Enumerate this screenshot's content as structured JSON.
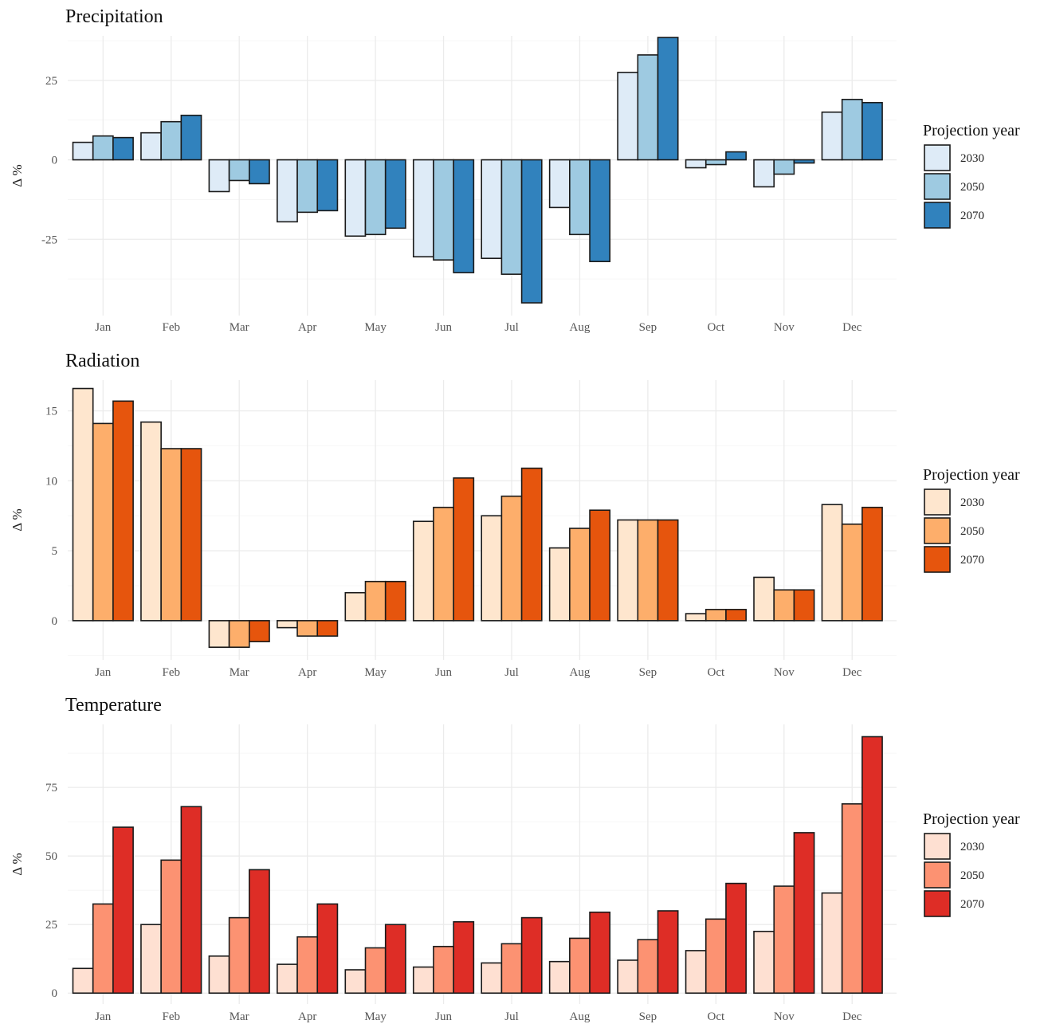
{
  "chart_data": [
    {
      "type": "bar",
      "title": "Precipitation",
      "ylabel": "Δ %",
      "xlabel": "",
      "categories": [
        "Jan",
        "Feb",
        "Mar",
        "Apr",
        "May",
        "Jun",
        "Jul",
        "Aug",
        "Sep",
        "Oct",
        "Nov",
        "Dec"
      ],
      "ylim": [
        -49,
        39
      ],
      "yticks": [
        -25,
        0,
        25
      ],
      "grid": true,
      "legend": {
        "title": "Projection year",
        "position": "right"
      },
      "series": [
        {
          "name": "2030",
          "color": "#deebf7",
          "values": [
            5.5,
            8.5,
            -10,
            -19.5,
            -24,
            -30.5,
            -31,
            -15,
            27.5,
            -2.5,
            -8.5,
            15
          ]
        },
        {
          "name": "2050",
          "color": "#9ecae1",
          "values": [
            7.5,
            12,
            -6.5,
            -16.5,
            -23.5,
            -31.5,
            -36,
            -23.5,
            33,
            -1.5,
            -4.5,
            19
          ]
        },
        {
          "name": "2070",
          "color": "#3182bd",
          "values": [
            7,
            14,
            -7.5,
            -16,
            -21.5,
            -35.5,
            -45,
            -32,
            38.5,
            2.5,
            -1,
            18
          ]
        }
      ]
    },
    {
      "type": "bar",
      "title": "Radiation",
      "ylabel": "Δ %",
      "xlabel": "",
      "categories": [
        "Jan",
        "Feb",
        "Mar",
        "Apr",
        "May",
        "Jun",
        "Jul",
        "Aug",
        "Sep",
        "Oct",
        "Nov",
        "Dec"
      ],
      "ylim": [
        -2.8,
        17.2
      ],
      "yticks": [
        0,
        5,
        10,
        15
      ],
      "grid": true,
      "legend": {
        "title": "Projection year",
        "position": "right"
      },
      "series": [
        {
          "name": "2030",
          "color": "#fee6ce",
          "values": [
            16.6,
            14.2,
            -1.9,
            -0.5,
            2.0,
            7.1,
            7.5,
            5.2,
            7.2,
            0.5,
            3.1,
            8.3
          ]
        },
        {
          "name": "2050",
          "color": "#fdae6b",
          "values": [
            14.1,
            12.3,
            -1.9,
            -1.1,
            2.8,
            8.1,
            8.9,
            6.6,
            7.2,
            0.8,
            2.2,
            6.9
          ]
        },
        {
          "name": "2070",
          "color": "#e6550d",
          "values": [
            15.7,
            12.3,
            -1.5,
            -1.1,
            2.8,
            10.2,
            10.9,
            7.9,
            7.2,
            0.8,
            2.2,
            8.1
          ]
        }
      ]
    },
    {
      "type": "bar",
      "title": "Temperature",
      "ylabel": "Δ %",
      "xlabel": "",
      "categories": [
        "Jan",
        "Feb",
        "Mar",
        "Apr",
        "May",
        "Jun",
        "Jul",
        "Aug",
        "Sep",
        "Oct",
        "Nov",
        "Dec"
      ],
      "ylim": [
        -4,
        98
      ],
      "yticks": [
        0,
        25,
        50,
        75
      ],
      "grid": true,
      "legend": {
        "title": "Projection year",
        "position": "right"
      },
      "series": [
        {
          "name": "2030",
          "color": "#fee0d2",
          "values": [
            9,
            25,
            13.5,
            10.5,
            8.5,
            9.5,
            11,
            11.5,
            12,
            15.5,
            22.5,
            36.5
          ]
        },
        {
          "name": "2050",
          "color": "#fc9272",
          "values": [
            32.5,
            48.5,
            27.5,
            20.5,
            16.5,
            17,
            18,
            20,
            19.5,
            27,
            39,
            69
          ]
        },
        {
          "name": "2070",
          "color": "#de2d26",
          "values": [
            60.5,
            68,
            45,
            32.5,
            25,
            26,
            27.5,
            29.5,
            30,
            40,
            58.5,
            93.5
          ]
        }
      ]
    }
  ]
}
